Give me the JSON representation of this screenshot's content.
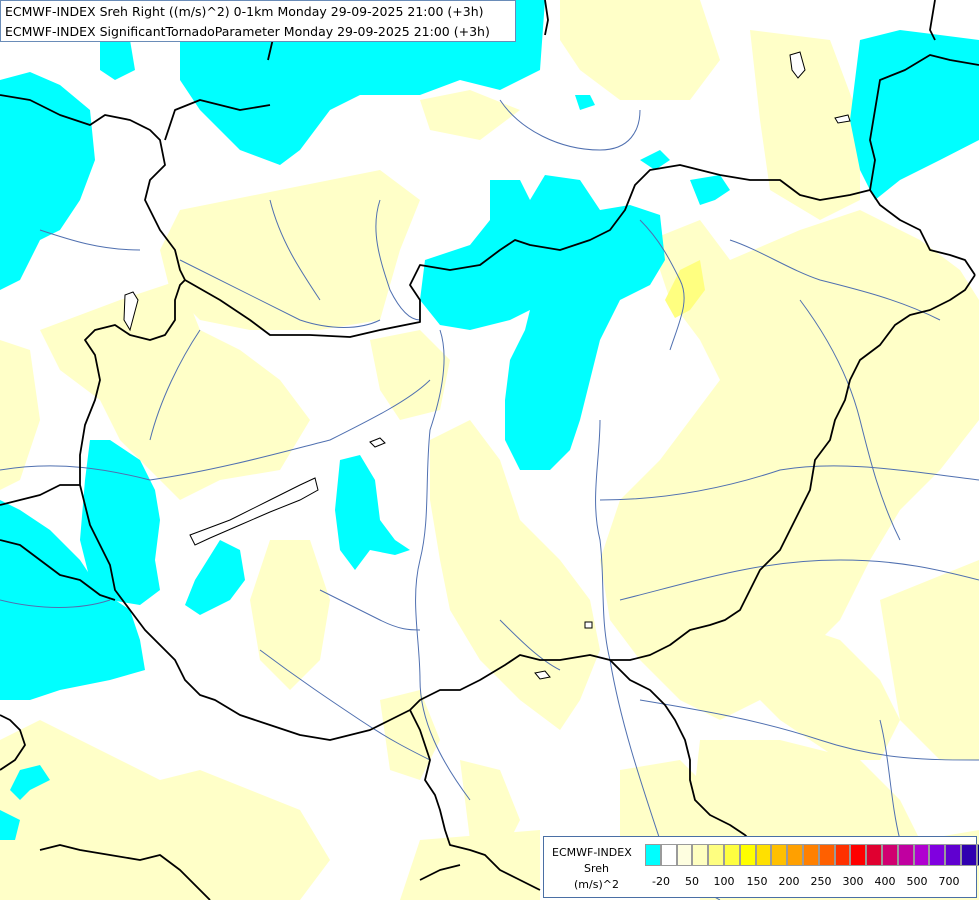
{
  "title": {
    "line1": "ECMWF-INDEX Sreh Right ((m/s)^2) 0-1km Monday 29-09-2025 21:00 (+3h)",
    "line2": "ECMWF-INDEX SignificantTornadoParameter Monday 29-09-2025 21:00 (+3h)"
  },
  "legend": {
    "model": "ECMWF-INDEX",
    "parameter": "Sreh",
    "units": "(m/s)^2",
    "colors": [
      "#00ffff",
      "#ffffff",
      "#fefee0",
      "#fefec0",
      "#fefe80",
      "#fefe40",
      "#ffff00",
      "#ffe000",
      "#ffc000",
      "#ffa000",
      "#ff8000",
      "#ff6000",
      "#ff3000",
      "#ff0000",
      "#e00030",
      "#d00070",
      "#c000a0",
      "#b000d0",
      "#8000e0",
      "#6000d0",
      "#3000b0",
      "#000080"
    ],
    "tick_labels": [
      "-20",
      "50",
      "100",
      "150",
      "200",
      "250",
      "300",
      "400",
      "500",
      "700"
    ]
  },
  "map_colors": {
    "cyan": "#00ffff",
    "pale_yellow": "#ffffc8",
    "yellow": "#ffff80",
    "border": "#000000",
    "river": "#5070b0"
  }
}
